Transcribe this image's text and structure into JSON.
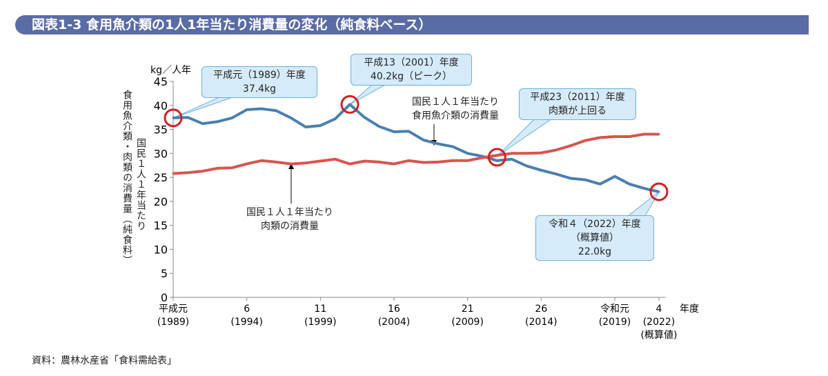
{
  "title": "図表1-3 食用魚介類の1人1年当たり消費量の変化（純食料ベース）",
  "source": "資料：農林水産省「食料需給表」",
  "colors": {
    "fish": "#4a7fb0",
    "meat": "#d9534f",
    "highlight": "#d0201f",
    "callout_fill": "#d6ebf9",
    "title_bar": "#5a6ca6"
  },
  "chart_data": {
    "type": "line",
    "yunit": "kg／人年",
    "ylabel_outer": "食用魚介類・肉類の消費量（純食料）",
    "ylabel_inner": "国民１人１年当たり",
    "xunit": "年度",
    "ylim": [
      0,
      45
    ],
    "yticks": [
      0,
      5,
      10,
      15,
      20,
      25,
      30,
      35,
      40,
      45
    ],
    "xlim": [
      1989,
      2022
    ],
    "xticks": [
      {
        "year": 1989,
        "l1": "平成元",
        "l2": "(1989)"
      },
      {
        "year": 1994,
        "l1": "6",
        "l2": "(1994)"
      },
      {
        "year": 1999,
        "l1": "11",
        "l2": "(1999)"
      },
      {
        "year": 2004,
        "l1": "16",
        "l2": "(2004)"
      },
      {
        "year": 2009,
        "l1": "21",
        "l2": "(2009)"
      },
      {
        "year": 2014,
        "l1": "26",
        "l2": "(2014)"
      },
      {
        "year": 2019,
        "l1": "令和元",
        "l2": "(2019)"
      },
      {
        "year": 2022,
        "l1": "4",
        "l2": "(2022)",
        "l3": "(概算値)"
      }
    ],
    "x": [
      1989,
      1990,
      1991,
      1992,
      1993,
      1994,
      1995,
      1996,
      1997,
      1998,
      1999,
      2000,
      2001,
      2002,
      2003,
      2004,
      2005,
      2006,
      2007,
      2008,
      2009,
      2010,
      2011,
      2012,
      2013,
      2014,
      2015,
      2016,
      2017,
      2018,
      2019,
      2020,
      2021,
      2022
    ],
    "series": [
      {
        "key": "fish",
        "name": "国民１人１年当たり食用魚介類の消費量",
        "values": [
          37.4,
          37.5,
          36.2,
          36.6,
          37.4,
          39.1,
          39.3,
          38.9,
          37.4,
          35.5,
          35.8,
          37.2,
          40.2,
          37.5,
          35.6,
          34.5,
          34.6,
          32.8,
          32.0,
          31.4,
          30.0,
          29.4,
          28.5,
          28.8,
          27.4,
          26.5,
          25.7,
          24.8,
          24.5,
          23.6,
          25.2,
          23.6,
          22.7,
          22.0
        ]
      },
      {
        "key": "meat",
        "name": "国民１人１年当たり肉類の消費量",
        "values": [
          25.8,
          26.0,
          26.3,
          26.9,
          27.0,
          27.8,
          28.5,
          28.2,
          27.8,
          28.0,
          28.4,
          28.8,
          27.8,
          28.4,
          28.2,
          27.8,
          28.5,
          28.1,
          28.2,
          28.5,
          28.5,
          29.1,
          29.6,
          30.0,
          30.0,
          30.1,
          30.7,
          31.6,
          32.7,
          33.3,
          33.5,
          33.5,
          34.0,
          34.0
        ]
      }
    ],
    "annotations": {
      "c1989": {
        "l1": "平成元（1989）年度",
        "l2": "37.4kg"
      },
      "c2001": {
        "l1": "平成13（2001）年度",
        "l2": "40.2kg（ピーク）"
      },
      "c2011": {
        "l1": "平成23（2011）年度",
        "l2": "肉類が上回る"
      },
      "c2022": {
        "l1": "令和４（2022）年度",
        "l2": "（概算値）",
        "l3": "22.0kg"
      },
      "fish_note": {
        "l1": "国民１人１年当たり",
        "l2": "食用魚介類の消費量"
      },
      "meat_note": {
        "l1": "国民１人１年当たり",
        "l2": "肉類の消費量"
      }
    }
  }
}
